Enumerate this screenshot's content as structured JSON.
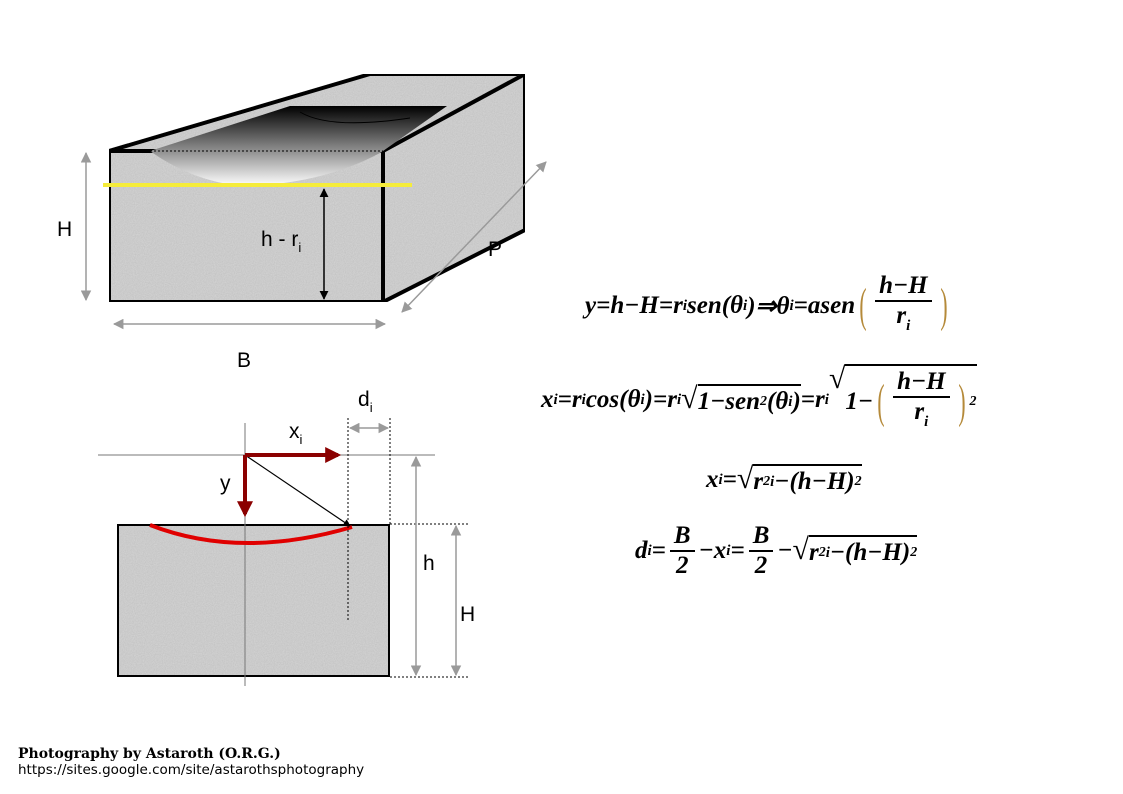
{
  "top_figure": {
    "labels": {
      "H": "H",
      "B": "B",
      "P": "P",
      "h_minus_r": "h - r",
      "h_minus_r_sub": "i"
    },
    "colors": {
      "water_line": "#f5ec3a",
      "edge": "#000000",
      "arrow": "#9a9a9a",
      "texture": "#d6d6d6"
    }
  },
  "bottom_figure": {
    "labels": {
      "x": "x",
      "x_sub": "i",
      "y": "y",
      "d": "d",
      "d_sub": "i",
      "h": "h",
      "H": "H"
    },
    "colors": {
      "axis_arrow": "#8b0000",
      "curve": "#e00000"
    }
  },
  "equations": [
    {
      "tokens": [
        "y=h−H=r",
        {
          "sub": "i"
        },
        "sen(θ",
        {
          "sub": "i"
        },
        ")⇒θ",
        {
          "sub": "i"
        },
        "=asen",
        {
          "paren_frac": {
            "num": "h−H",
            "den": "r",
            "den_sub": "i"
          }
        }
      ]
    },
    {
      "tokens": [
        "x",
        {
          "sub": "i"
        },
        "=r",
        {
          "sub": "i"
        },
        "cos(θ",
        {
          "sub": "i"
        },
        ")=r",
        {
          "sub": "i"
        },
        {
          "sqrt": [
            "1−sen",
            {
              "sup": "2"
            },
            "(θ",
            {
              "sub": "i"
            },
            ")"
          ]
        },
        "=r",
        {
          "sub": "i"
        },
        {
          "sqrt": [
            "1−",
            {
              "paren_frac": {
                "num": "h−H",
                "den": "r",
                "den_sub": "i"
              }
            },
            {
              "sup": "2"
            }
          ]
        }
      ]
    },
    {
      "tokens": [
        "x",
        {
          "sub": "i"
        },
        "=",
        {
          "sqrt": [
            "r",
            {
              "sup": "2"
            },
            {
              "sub": "i"
            },
            "−(h−H)",
            {
              "sup": "2"
            }
          ]
        }
      ]
    },
    {
      "tokens": [
        "d",
        {
          "sub": "i"
        },
        "=",
        {
          "frac": {
            "num": "B",
            "den": "2"
          }
        },
        "−x",
        {
          "sub": "i"
        },
        "=",
        {
          "frac": {
            "num": "B",
            "den": "2"
          }
        },
        "−",
        {
          "sqrt": [
            "r",
            {
              "sup": "2"
            },
            {
              "sub": "i"
            },
            "−(h−H)",
            {
              "sup": "2"
            }
          ]
        }
      ]
    }
  ],
  "footer": {
    "credit": "Photography by Astaroth (O.R.G.)",
    "url": "https://sites.google.com/site/astarothsphotography"
  }
}
